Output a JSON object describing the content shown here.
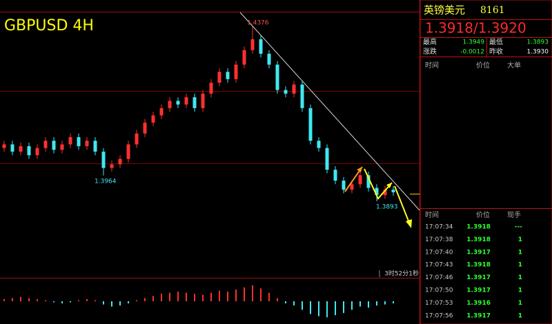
{
  "chart_data": {
    "type": "candlestick",
    "title": "GBPUSD 4H",
    "open": [
      1.404,
      1.405,
      1.403,
      1.4045,
      1.402,
      1.404,
      1.406,
      1.4035,
      1.405,
      1.407,
      1.4045,
      1.406,
      1.403,
      1.3985,
      1.3995,
      1.401,
      1.405,
      1.408,
      1.411,
      1.413,
      1.415,
      1.417,
      1.416,
      1.418,
      1.415,
      1.419,
      1.422,
      1.425,
      1.423,
      1.427,
      1.431,
      1.434,
      1.43,
      1.427,
      1.42,
      1.419,
      1.4215,
      1.415,
      1.406,
      1.404,
      1.398,
      1.395,
      1.3925,
      1.394,
      1.3965,
      1.393,
      1.391,
      1.3925
    ],
    "high": [
      1.406,
      1.406,
      1.4055,
      1.4055,
      1.405,
      1.407,
      1.407,
      1.406,
      1.408,
      1.408,
      1.407,
      1.407,
      1.404,
      1.4005,
      1.402,
      1.406,
      1.409,
      1.412,
      1.414,
      1.416,
      1.418,
      1.418,
      1.419,
      1.419,
      1.42,
      1.423,
      1.426,
      1.426,
      1.428,
      1.432,
      1.4376,
      1.435,
      1.431,
      1.428,
      1.421,
      1.4225,
      1.4225,
      1.416,
      1.407,
      1.405,
      1.399,
      1.396,
      1.395,
      1.3975,
      1.3975,
      1.394,
      1.3935,
      1.3935
    ],
    "low": [
      1.403,
      1.402,
      1.402,
      1.401,
      1.401,
      1.403,
      1.4025,
      1.4025,
      1.404,
      1.4035,
      1.4035,
      1.402,
      1.3964,
      1.3975,
      1.3985,
      1.4,
      1.404,
      1.407,
      1.41,
      1.412,
      1.414,
      1.415,
      1.415,
      1.414,
      1.414,
      1.418,
      1.421,
      1.422,
      1.422,
      1.426,
      1.43,
      1.429,
      1.426,
      1.419,
      1.418,
      1.418,
      1.414,
      1.405,
      1.403,
      1.397,
      1.394,
      1.3915,
      1.3915,
      1.393,
      1.392,
      1.3893,
      1.39,
      1.3908
    ],
    "close": [
      1.405,
      1.403,
      1.4045,
      1.402,
      1.404,
      1.406,
      1.4035,
      1.405,
      1.407,
      1.4045,
      1.406,
      1.403,
      1.3985,
      1.3995,
      1.401,
      1.405,
      1.408,
      1.411,
      1.413,
      1.415,
      1.417,
      1.416,
      1.418,
      1.415,
      1.419,
      1.422,
      1.425,
      1.423,
      1.427,
      1.431,
      1.434,
      1.43,
      1.427,
      1.42,
      1.419,
      1.4215,
      1.415,
      1.406,
      1.404,
      1.398,
      1.395,
      1.3925,
      1.394,
      1.3965,
      1.393,
      1.391,
      1.3925,
      1.3918
    ],
    "ylim": [
      1.3682,
      1.4414
    ],
    "up_color": "#ff3030",
    "down_color": "#40e8f0",
    "annotations": [
      "1.4376",
      "1.3964",
      "1.3893"
    ],
    "timer": "3时52分1秒",
    "indicator": {
      "values": [
        2,
        3,
        4,
        3,
        2,
        1,
        -1,
        -2,
        -1,
        1,
        2,
        1,
        -3,
        -5,
        -4,
        -2,
        1,
        3,
        5,
        7,
        8,
        9,
        8,
        7,
        6,
        8,
        10,
        9,
        11,
        13,
        15,
        12,
        8,
        3,
        -2,
        -4,
        -8,
        -12,
        -14,
        -15,
        -13,
        -11,
        -8,
        -5,
        -6,
        -4,
        -3,
        -2
      ],
      "ylim": [
        -20,
        20
      ]
    }
  },
  "quote": {
    "name": "英镑美元",
    "code": "8161",
    "price": "1.3918/1.3920",
    "high_label": "最高",
    "high": "1.3949",
    "low_label": "最低",
    "low": "1.3893",
    "change_label": "涨跌",
    "change": "-0.0012",
    "prev_label": "昨收",
    "prev": "1.3930",
    "headers": [
      "时间",
      "价位",
      "大单"
    ]
  },
  "trades": {
    "headers": [
      "时间",
      "价位",
      "现手"
    ],
    "rows": [
      [
        "17:07:34",
        "1.3918",
        "---"
      ],
      [
        "17:07:38",
        "1.3918",
        "1"
      ],
      [
        "17:07:40",
        "1.3917",
        "1"
      ],
      [
        "17:07:43",
        "1.3918",
        "1"
      ],
      [
        "17:07:46",
        "1.3917",
        "1"
      ],
      [
        "17:07:50",
        "1.3917",
        "1"
      ],
      [
        "17:07:53",
        "1.3916",
        "1"
      ],
      [
        "17:07:56",
        "1.3917",
        "1"
      ]
    ]
  }
}
